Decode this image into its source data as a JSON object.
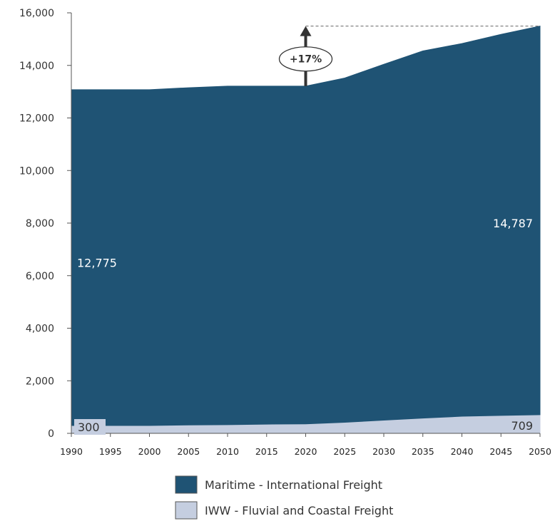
{
  "chart_data": {
    "type": "area",
    "stacked": true,
    "x": [
      1990,
      1995,
      2000,
      2005,
      2010,
      2015,
      2020,
      2025,
      2030,
      2035,
      2040,
      2045,
      2050
    ],
    "x_tick_labels": [
      "1990",
      "1995",
      "2000",
      "2005",
      "2010",
      "2015",
      "2020",
      "2025",
      "2030",
      "2035",
      "2040",
      "2045",
      "2050"
    ],
    "ylim": [
      0,
      16000
    ],
    "y_ticks": [
      0,
      2000,
      4000,
      6000,
      8000,
      10000,
      12000,
      14000,
      16000
    ],
    "y_tick_labels": [
      "0",
      "2,000",
      "4,000",
      "6,000",
      "8,000",
      "10,000",
      "12,000",
      "14,000",
      "16,000"
    ],
    "grid": false,
    "legend_position": "bottom-center",
    "series": [
      {
        "name": "IWW - Fluvial and Coastal Freight",
        "color": "#c5cee0",
        "values": [
          300,
          300,
          300,
          320,
          330,
          350,
          360,
          420,
          500,
          580,
          650,
          680,
          709
        ]
      },
      {
        "name": "Maritime - International Freight",
        "color": "#1f5374",
        "values": [
          12775,
          12775,
          12775,
          12830,
          12880,
          12860,
          12850,
          13100,
          13540,
          13970,
          14180,
          14500,
          14787
        ]
      }
    ],
    "annotations": [
      {
        "text": "12,775",
        "series": "Maritime - International Freight",
        "x": 1990
      },
      {
        "text": "14,787",
        "series": "Maritime - International Freight",
        "x": 2050
      },
      {
        "text": "300",
        "series": "IWW - Fluvial and Coastal Freight",
        "x": 1990
      },
      {
        "text": "709",
        "series": "IWW - Fluvial and Coastal Freight",
        "x": 2050
      },
      {
        "text": "+17%",
        "type": "arrow-callout",
        "x": 2020
      }
    ]
  }
}
